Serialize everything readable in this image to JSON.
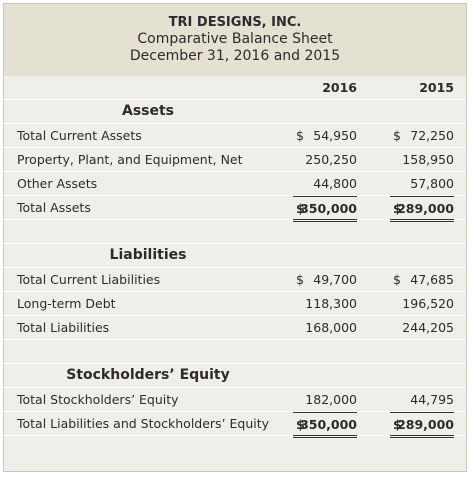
{
  "header": {
    "company": "TRI DESIGNS, INC.",
    "title": "Comparative Balance Sheet",
    "date": "December 31, 2016 and 2015"
  },
  "columns": [
    "2016",
    "2015"
  ],
  "sections": [
    {
      "title": "Assets",
      "rows": [
        {
          "label": "Total Current Assets",
          "values": [
            {
              "sign": "$",
              "amount": "54,950"
            },
            {
              "sign": "$",
              "amount": "72,250"
            }
          ]
        },
        {
          "label": "Property, Plant, and Equipment, Net",
          "values": [
            {
              "amount": "250,250"
            },
            {
              "amount": "158,950"
            }
          ]
        },
        {
          "label": "Other Assets",
          "values": [
            {
              "amount": "44,800"
            },
            {
              "amount": "57,800"
            }
          ]
        },
        {
          "label": "Total Assets",
          "values": [
            {
              "sign": "$",
              "amount": "350,000"
            },
            {
              "sign": "$",
              "amount": "289,000"
            }
          ]
        }
      ]
    },
    {
      "title": "Liabilities",
      "rows": [
        {
          "label": "Total Current Liabilities",
          "values": [
            {
              "sign": "$",
              "amount": "49,700"
            },
            {
              "sign": "$",
              "amount": "47,685"
            }
          ]
        },
        {
          "label": "Long-term Debt",
          "values": [
            {
              "amount": "118,300"
            },
            {
              "amount": "196,520"
            }
          ]
        },
        {
          "label": "Total Liabilities",
          "values": [
            {
              "amount": "168,000"
            },
            {
              "amount": "244,205"
            }
          ]
        }
      ]
    },
    {
      "title": "Stockholders’ Equity",
      "rows": [
        {
          "label": "Total Stockholders’ Equity",
          "values": [
            {
              "amount": "182,000"
            },
            {
              "amount": "44,795"
            }
          ]
        },
        {
          "label": "Total Liabilities and Stockholders’ Equity",
          "values": [
            {
              "sign": "$",
              "amount": "350,000"
            },
            {
              "sign": "$",
              "amount": "289,000"
            }
          ]
        }
      ]
    }
  ]
}
